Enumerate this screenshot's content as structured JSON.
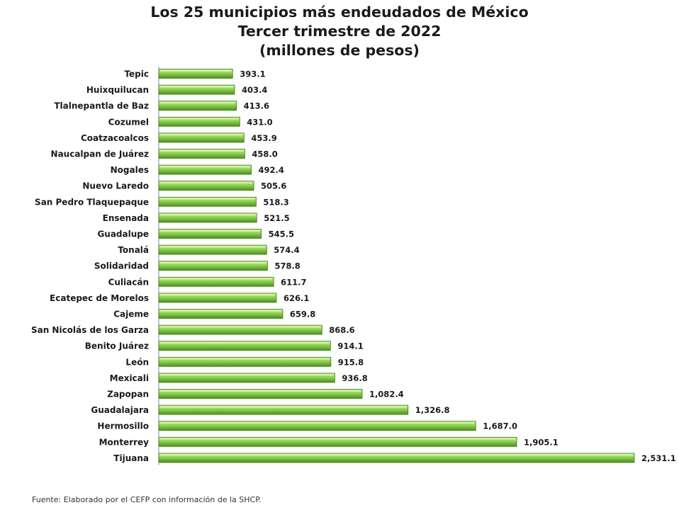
{
  "chart_data": {
    "type": "bar",
    "orientation": "horizontal",
    "title": "Los 25 municipios más endeudados de México",
    "subtitle": "Tercer trimestre de 2022",
    "unit_note": "(millones de pesos)",
    "categories": [
      "Tepic",
      "Huixquilucan",
      "Tlalnepantla de Baz",
      "Cozumel",
      "Coatzacoalcos",
      "Naucalpan de Juárez",
      "Nogales",
      "Nuevo Laredo",
      "San Pedro Tlaquepaque",
      "Ensenada",
      "Guadalupe",
      "Tonalá",
      "Solidaridad",
      "Culiacán",
      "Ecatepec de Morelos",
      "Cajeme",
      "San Nicolás de los Garza",
      "Benito Juárez",
      "León",
      "Mexicali",
      "Zapopan",
      "Guadalajara",
      "Hermosillo",
      "Monterrey",
      "Tijuana"
    ],
    "values": [
      393.1,
      403.4,
      413.6,
      431.0,
      453.9,
      458.0,
      492.4,
      505.6,
      518.3,
      521.5,
      545.5,
      574.4,
      578.8,
      611.7,
      626.1,
      659.8,
      868.6,
      914.1,
      915.8,
      936.8,
      1082.4,
      1326.8,
      1687.0,
      1905.1,
      2531.1
    ],
    "value_labels": [
      "393.1",
      "403.4",
      "413.6",
      "431.0",
      "453.9",
      "458.0",
      "492.4",
      "505.6",
      "518.3",
      "521.5",
      "545.5",
      "574.4",
      "578.8",
      "611.7",
      "626.1",
      "659.8",
      "868.6",
      "914.1",
      "915.8",
      "936.8",
      "1,082.4",
      "1,326.8",
      "1,687.0",
      "1,905.1",
      "2,531.1"
    ],
    "xlim": [
      0,
      2531.1
    ],
    "grid": false,
    "legend": "none",
    "colors": {
      "bar_fill": "#8fd14f",
      "bar_light": "#c9ef9a",
      "bar_dark": "#4e8f1f",
      "bar_edge": "#3f7a17"
    }
  },
  "source": "Fuente: Elaborado por el CEFP con información de la SHCP."
}
